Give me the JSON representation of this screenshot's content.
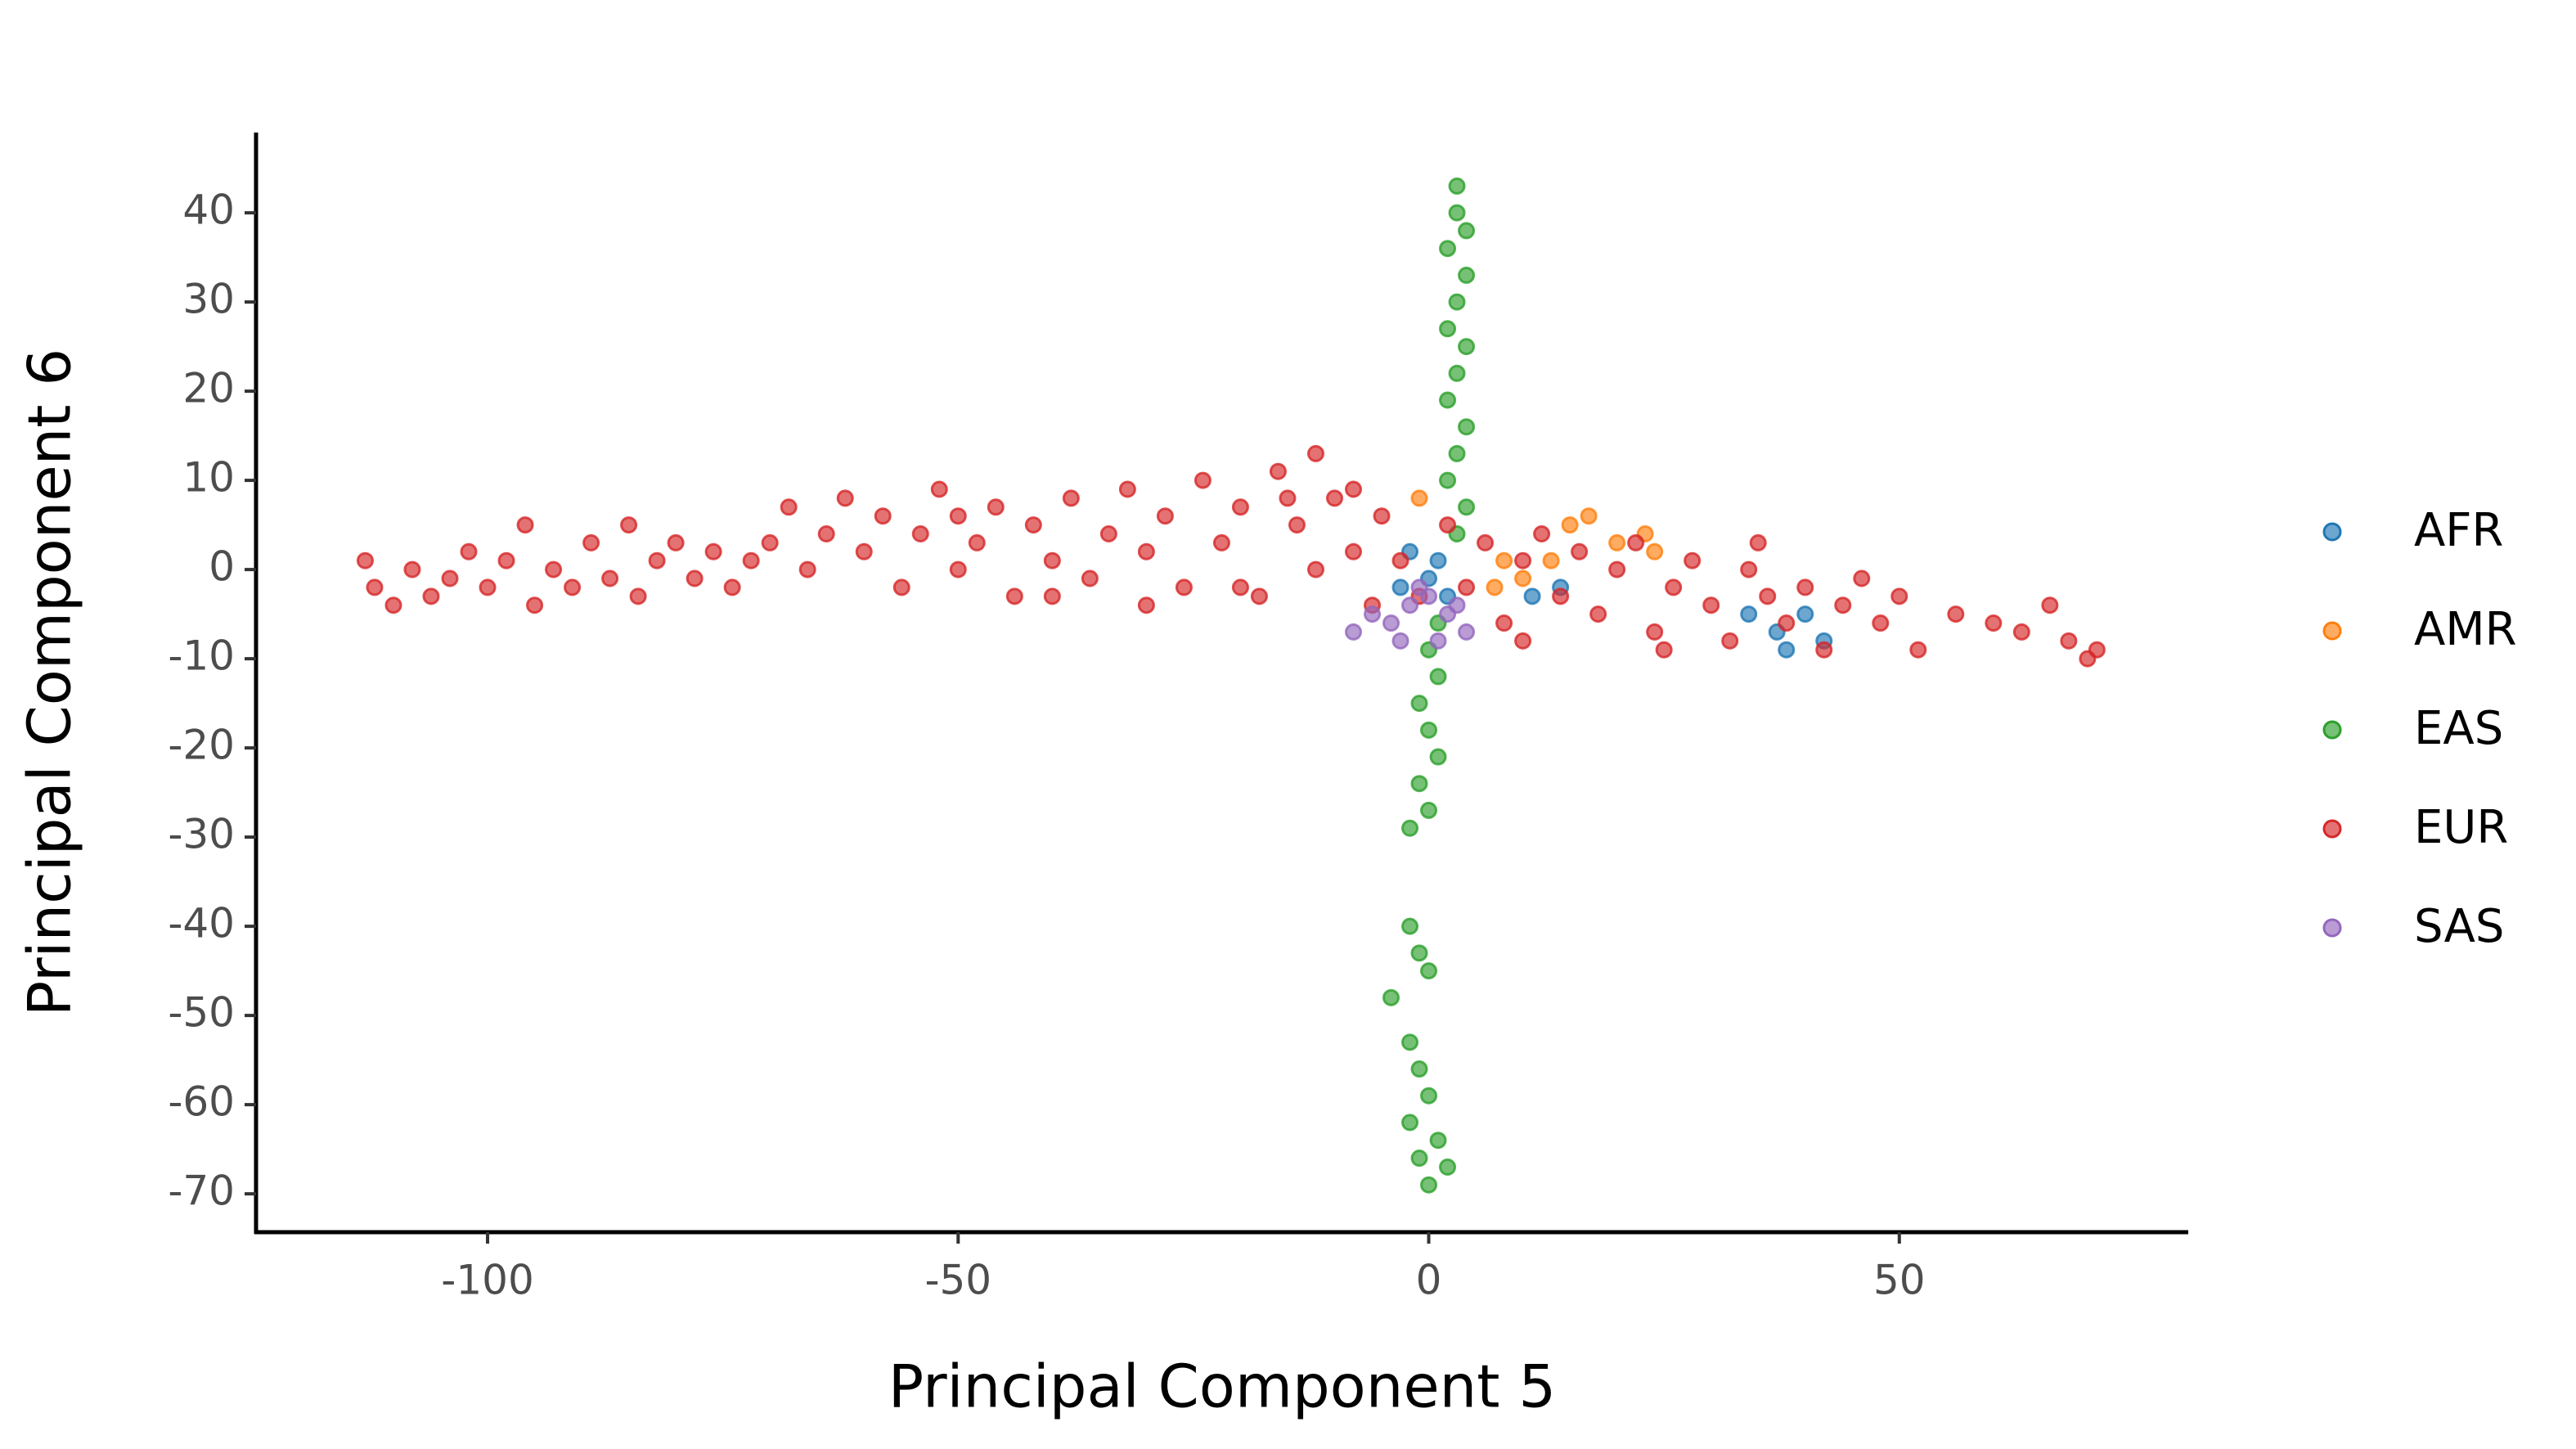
{
  "chart_data": {
    "type": "scatter",
    "x_label": "Principal Component 5",
    "y_label": "Principal Component 6",
    "xlim": [
      -124.6,
      80.7
    ],
    "ylim": [
      -74.3,
      49
    ],
    "xticks": [
      -100,
      -50,
      0,
      50
    ],
    "yticks": [
      -70,
      -60,
      -50,
      -40,
      -30,
      -20,
      -10,
      0,
      10,
      20,
      30,
      40
    ],
    "grid": false,
    "legend": "right",
    "series": [
      {
        "name": "AFR",
        "color": "#1f77b4",
        "x": [
          -2,
          0,
          2,
          -3,
          1,
          11,
          14,
          34,
          37,
          40,
          42,
          38
        ],
        "y": [
          2,
          -1,
          -3,
          -2,
          1,
          -3,
          -2,
          -5,
          -7,
          -5,
          -8,
          -9
        ]
      },
      {
        "name": "AMR",
        "color": "#ff7f0e",
        "x": [
          15,
          17,
          20,
          24,
          23,
          10,
          7,
          13,
          -1,
          8
        ],
        "y": [
          5,
          6,
          3,
          2,
          4,
          -1,
          -2,
          1,
          8,
          1
        ]
      },
      {
        "name": "EAS",
        "color": "#2ca02c",
        "x": [
          3,
          3,
          4,
          2,
          4,
          3,
          2,
          4,
          3,
          2,
          4,
          3,
          2,
          4,
          3,
          1,
          0,
          1,
          -1,
          0,
          1,
          -1,
          0,
          -2,
          -2,
          -1,
          0,
          -4,
          -2,
          -1,
          0,
          -2,
          1,
          -1,
          0,
          2
        ],
        "y": [
          43,
          40,
          38,
          36,
          33,
          30,
          27,
          25,
          22,
          19,
          16,
          13,
          10,
          7,
          4,
          -6,
          -9,
          -12,
          -15,
          -18,
          -21,
          -24,
          -27,
          -29,
          -40,
          -43,
          -45,
          -48,
          -53,
          -56,
          -59,
          -62,
          -64,
          -66,
          -69,
          -67
        ]
      },
      {
        "name": "EUR",
        "color": "#d62728",
        "x": [
          -113,
          -112,
          -110,
          -108,
          -106,
          -104,
          -102,
          -100,
          -98,
          -96,
          -95,
          -93,
          -91,
          -89,
          -87,
          -85,
          -84,
          -82,
          -80,
          -78,
          -76,
          -74,
          -72,
          -70,
          -68,
          -66,
          -64,
          -62,
          -60,
          -58,
          -56,
          -54,
          -52,
          -50,
          -48,
          -46,
          -44,
          -42,
          -40,
          -38,
          -36,
          -34,
          -32,
          -30,
          -28,
          -26,
          -24,
          -22,
          -20,
          -18,
          -16,
          -14,
          -12,
          -12,
          -10,
          -8,
          -6,
          -5,
          -3,
          -1,
          2,
          4,
          6,
          8,
          10,
          12,
          14,
          16,
          18,
          20,
          22,
          24,
          26,
          28,
          30,
          32,
          34,
          36,
          38,
          40,
          42,
          44,
          46,
          48,
          50,
          52,
          56,
          60,
          63,
          66,
          68,
          70,
          71,
          -30,
          -20,
          -40,
          -50,
          -15,
          -8,
          10,
          25,
          35
        ],
        "y": [
          1,
          -2,
          -4,
          0,
          -3,
          -1,
          2,
          -2,
          1,
          5,
          -4,
          0,
          -2,
          3,
          -1,
          5,
          -3,
          1,
          3,
          -1,
          2,
          -2,
          1,
          3,
          7,
          0,
          4,
          8,
          2,
          6,
          -2,
          4,
          9,
          0,
          3,
          7,
          -3,
          5,
          1,
          8,
          -1,
          4,
          9,
          2,
          6,
          -2,
          10,
          3,
          7,
          -3,
          11,
          5,
          13,
          0,
          8,
          2,
          -4,
          6,
          1,
          -3,
          5,
          -2,
          3,
          -6,
          1,
          4,
          -3,
          2,
          -5,
          0,
          3,
          -7,
          -2,
          1,
          -4,
          -8,
          0,
          -3,
          -6,
          -2,
          -9,
          -4,
          -1,
          -6,
          -3,
          -9,
          -5,
          -6,
          -7,
          -4,
          -8,
          -10,
          -9,
          -4,
          -2,
          -3,
          6,
          8,
          9,
          -8,
          -9,
          3
        ]
      },
      {
        "name": "SAS",
        "color": "#9467bd",
        "x": [
          -8,
          -6,
          -4,
          -2,
          0,
          2,
          4,
          1,
          -1,
          3,
          -3
        ],
        "y": [
          -7,
          -5,
          -6,
          -4,
          -3,
          -5,
          -7,
          -8,
          -2,
          -4,
          -8
        ]
      }
    ]
  }
}
